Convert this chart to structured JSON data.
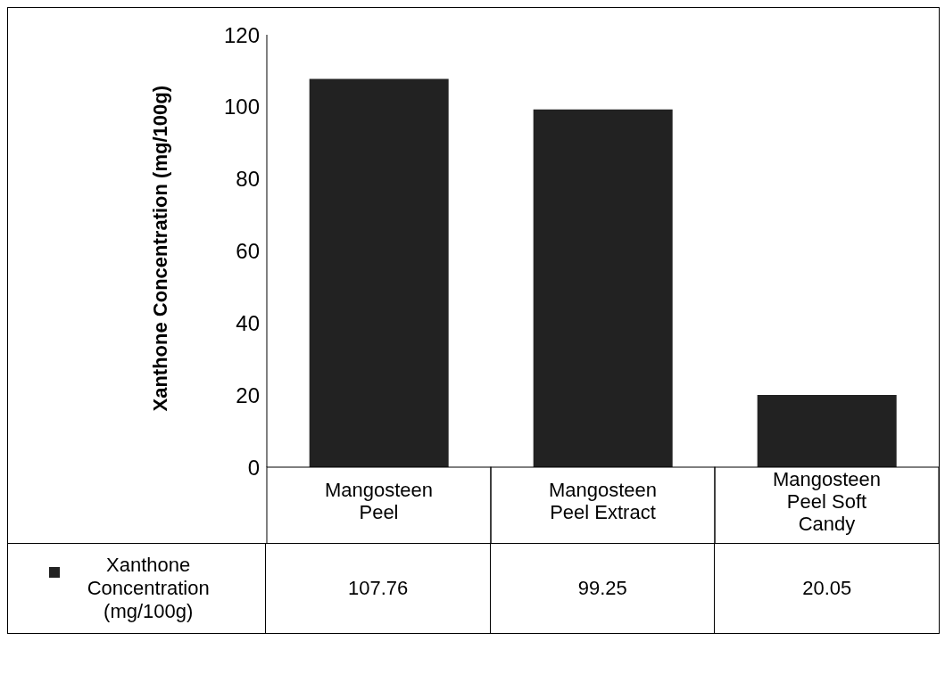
{
  "chart_data": {
    "type": "bar",
    "ylabel": "Xanthone Concentration (mg/100g)",
    "categories": [
      "Mangosteen Peel",
      "Mangosteen Peel Extract",
      "Mangosteen Peel Soft Candy"
    ],
    "series": [
      {
        "name": "Xanthone Concentration (mg/100g)",
        "color": "#222222",
        "values": [
          107.76,
          99.25,
          20.05
        ]
      }
    ],
    "ylim": [
      0,
      120
    ],
    "yticks": [
      0,
      20,
      40,
      60,
      80,
      100,
      120
    ],
    "data_labels": true,
    "legend": "bottom left"
  }
}
